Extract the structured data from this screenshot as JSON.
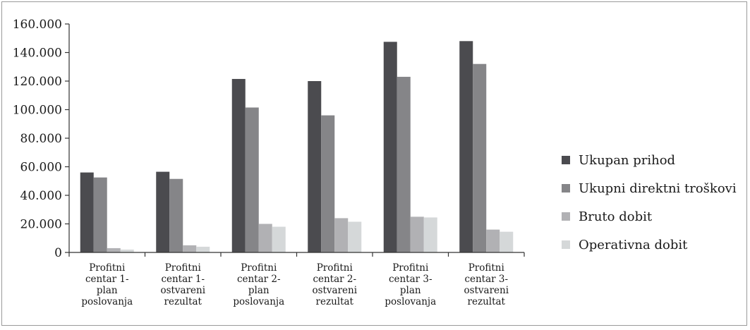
{
  "colors": {
    "ukupan_prihod": "#4b4b4f",
    "ukupni_direktni_troskovi": "#858588",
    "bruto_dobit": "#b1b1b4",
    "operativna_dobit": "#d5d8d9",
    "axis": "#333333"
  },
  "chart_data": {
    "type": "bar",
    "title": "",
    "xlabel": "",
    "ylabel": "",
    "ylim": [
      0,
      160000
    ],
    "y_ticks": [
      0,
      20000,
      40000,
      60000,
      80000,
      100000,
      120000,
      140000,
      160000
    ],
    "y_tick_labels": [
      "0",
      "20.000",
      "40.000",
      "60.000",
      "80.000",
      "100.000",
      "120.000",
      "140.000",
      "160.000"
    ],
    "grid": false,
    "legend_position": "right",
    "categories": [
      [
        "Profitni",
        "centar 1-",
        "plan",
        "poslovanja"
      ],
      [
        "Profitni",
        "centar 1-",
        "ostvareni",
        "rezultat"
      ],
      [
        "Profitni",
        "centar 2-",
        "plan",
        "poslovanja"
      ],
      [
        "Profitni",
        "centar 2-",
        "ostvareni",
        "rezultat"
      ],
      [
        "Profitni",
        "centar 3-",
        "plan",
        "poslovanja"
      ],
      [
        "Profitni",
        "centar 3-",
        "ostvareni",
        "rezultat"
      ]
    ],
    "series": [
      {
        "name": "Ukupan prihod",
        "color_key": "ukupan_prihod",
        "values": [
          56000,
          56500,
          121500,
          120000,
          147500,
          148000
        ]
      },
      {
        "name": "Ukupni direktni troškovi",
        "color_key": "ukupni_direktni_troskovi",
        "values": [
          52500,
          51500,
          101500,
          96000,
          123000,
          132000
        ]
      },
      {
        "name": "Bruto dobit",
        "color_key": "bruto_dobit",
        "values": [
          3000,
          5000,
          20000,
          24000,
          25000,
          16000
        ]
      },
      {
        "name": "Operativna dobit",
        "color_key": "operativna_dobit",
        "values": [
          2000,
          4000,
          18000,
          21500,
          24500,
          14500
        ]
      }
    ]
  }
}
